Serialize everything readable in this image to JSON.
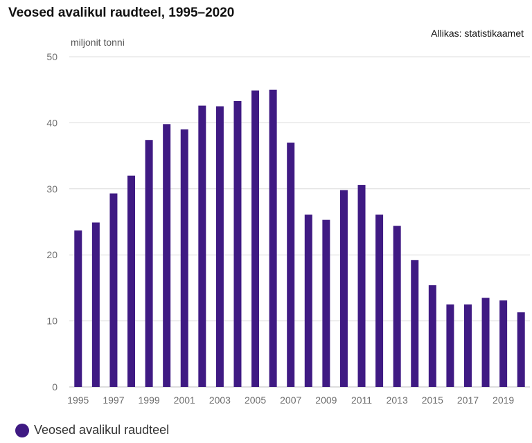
{
  "chart_data": {
    "type": "bar",
    "title": "Veosed avalikul raudteel, 1995–2020",
    "source": "Allikas: statistikaamet",
    "ylabel": "miljonit tonni",
    "xlabel": "",
    "ylim": [
      0,
      50
    ],
    "yticks": [
      0,
      10,
      20,
      30,
      40,
      50
    ],
    "grid": true,
    "categories": [
      "1995",
      "1996",
      "1997",
      "1998",
      "1999",
      "2000",
      "2001",
      "2002",
      "2003",
      "2004",
      "2005",
      "2006",
      "2007",
      "2008",
      "2009",
      "2010",
      "2011",
      "2012",
      "2013",
      "2014",
      "2015",
      "2016",
      "2017",
      "2018",
      "2019",
      "2020"
    ],
    "xtick_labels": [
      "1995",
      "1997",
      "1999",
      "2001",
      "2003",
      "2005",
      "2007",
      "2009",
      "2011",
      "2013",
      "2015",
      "2017",
      "2019"
    ],
    "series": [
      {
        "name": "Veosed avalikul raudteel",
        "color": "#3f1a83",
        "values": [
          23.7,
          24.9,
          29.3,
          32.0,
          37.4,
          39.8,
          39.0,
          42.6,
          42.5,
          43.3,
          44.9,
          45.0,
          37.0,
          26.1,
          25.3,
          29.8,
          30.6,
          26.1,
          24.4,
          19.2,
          15.4,
          12.5,
          12.5,
          13.5,
          13.1,
          11.3
        ]
      }
    ],
    "legend_position": "bottom-left"
  },
  "colors": {
    "grid": "#dcdcdc",
    "axis_text": "#6e6e6e"
  }
}
